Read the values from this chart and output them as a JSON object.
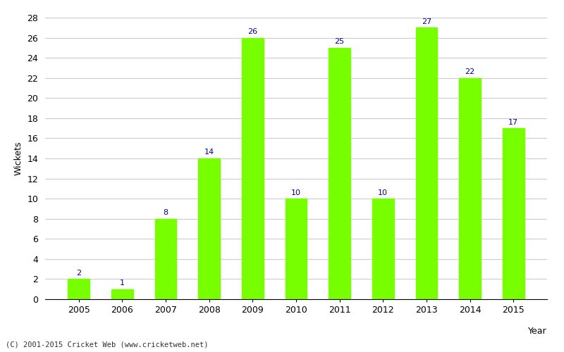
{
  "years": [
    "2005",
    "2006",
    "2007",
    "2008",
    "2009",
    "2010",
    "2011",
    "2012",
    "2013",
    "2014",
    "2015"
  ],
  "values": [
    2,
    1,
    8,
    14,
    26,
    10,
    25,
    10,
    27,
    22,
    17
  ],
  "bar_color": "#77ff00",
  "bar_edge_color": "#77ff00",
  "label_color": "#000099",
  "ylabel": "Wickets",
  "xlabel": "Year",
  "ylim": [
    0,
    28
  ],
  "yticks": [
    0,
    2,
    4,
    6,
    8,
    10,
    12,
    14,
    16,
    18,
    20,
    22,
    24,
    26,
    28
  ],
  "footnote": "(C) 2001-2015 Cricket Web (www.cricketweb.net)",
  "label_fontsize": 8,
  "axis_fontsize": 9,
  "background_color": "#ffffff",
  "grid_color": "#cccccc"
}
